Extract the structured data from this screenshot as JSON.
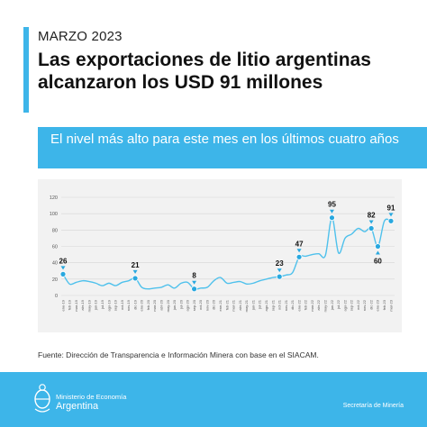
{
  "header": {
    "date": "MARZO 2023",
    "title": "Las exportaciones de litio argentinas alcanzaron los USD 91 millones",
    "subtitle": "El nivel más alto para este mes en los últimos cuatro años"
  },
  "chart_data": {
    "type": "line",
    "ylim": [
      0,
      120
    ],
    "yticks": [
      0,
      20,
      40,
      60,
      80,
      100,
      120
    ],
    "grid": true,
    "x": [
      "ene-19",
      "feb-19",
      "mar-19",
      "abr-19",
      "may-19",
      "jun-19",
      "jul-19",
      "ago-19",
      "sep-19",
      "oct-19",
      "nov-19",
      "dic-19",
      "ene-20",
      "feb-20",
      "mar-20",
      "abr-20",
      "may-20",
      "jun-20",
      "jul-20",
      "ago-20",
      "sep-20",
      "oct-20",
      "nov-20",
      "dic-20",
      "ene-21",
      "feb-21",
      "mar-21",
      "abr-21",
      "may-21",
      "jun-21",
      "jul-21",
      "ago-21",
      "sep-21",
      "oct-21",
      "nov-21",
      "dic-21",
      "ene-22",
      "feb-22",
      "mar-22",
      "abr-22",
      "may-22",
      "jun-22",
      "jul-22",
      "ago-22",
      "sep-22",
      "oct-22",
      "nov-22",
      "dic-22",
      "ene-23",
      "feb-23",
      "mar-23"
    ],
    "values": [
      26,
      14,
      16,
      18,
      17,
      15,
      12,
      15,
      12,
      16,
      18,
      21,
      10,
      8,
      9,
      10,
      13,
      9,
      15,
      16,
      8,
      9,
      10,
      18,
      22,
      15,
      16,
      17,
      14,
      15,
      18,
      20,
      22,
      23,
      25,
      28,
      47,
      48,
      50,
      51,
      49,
      95,
      52,
      70,
      75,
      82,
      78,
      82,
      60,
      91,
      91
    ],
    "highlights": [
      {
        "index": 0,
        "label": "26"
      },
      {
        "index": 11,
        "label": "21"
      },
      {
        "index": 20,
        "label": "8"
      },
      {
        "index": 33,
        "label": "23"
      },
      {
        "index": 36,
        "label": "47"
      },
      {
        "index": 41,
        "label": "95"
      },
      {
        "index": 47,
        "label": "82"
      },
      {
        "index": 48,
        "label": "60"
      },
      {
        "index": 50,
        "label": "91"
      }
    ],
    "colors": {
      "line": "#4fc1ec",
      "marker": "#29a8df",
      "grid": "#d6d6d6",
      "panel": "#f2f2f2"
    }
  },
  "source": "Fuente: Dirección de Transparencia e Información Minera con base en el SIACAM.",
  "footer": {
    "ministry": "Ministerio de Economía",
    "country": "Argentina",
    "secretaria": "Secretaría de Minería",
    "logo_icon": "argentina-coat-of-arms-icon"
  }
}
